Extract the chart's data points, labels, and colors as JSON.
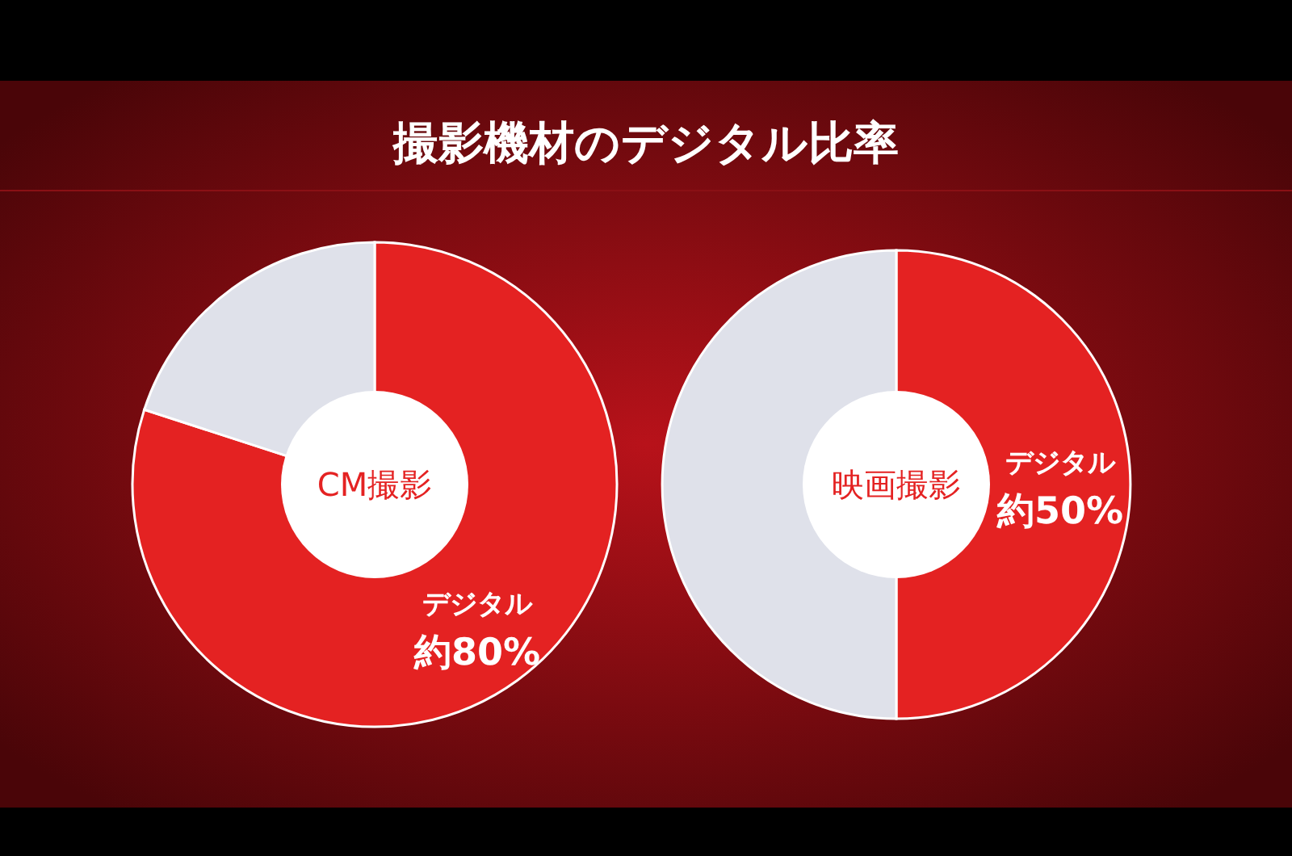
{
  "chart_data": [
    {
      "type": "donut",
      "title": "撮影機材のデジタル比率",
      "subtitle": "CM撮影",
      "categories": [
        "デジタル",
        null
      ],
      "values": [
        80,
        20
      ],
      "colors": [
        "#e42222",
        "#dfe1ea"
      ],
      "value_labels": [
        "約80%",
        null
      ]
    },
    {
      "type": "donut",
      "subtitle": "映画撮影",
      "categories": [
        "デジタル",
        null
      ],
      "values": [
        50,
        50
      ],
      "colors": [
        "#e42222",
        "#dfe1ea"
      ],
      "value_labels": [
        "約50%",
        null
      ]
    }
  ]
}
